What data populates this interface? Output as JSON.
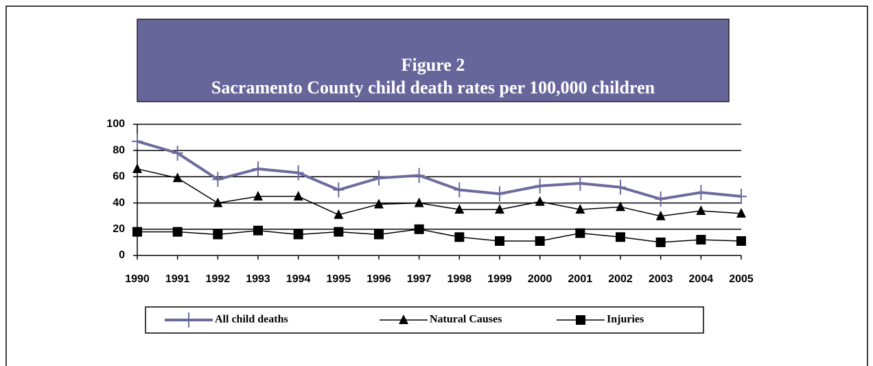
{
  "chart_data": {
    "type": "line",
    "title": "Figure 2",
    "subtitle": "Sacramento County child death rates per 100,000 children",
    "x": [
      1990,
      1991,
      1992,
      1993,
      1994,
      1995,
      1996,
      1997,
      1998,
      1999,
      2000,
      2001,
      2002,
      2003,
      2004,
      2005
    ],
    "xlim": [
      1990,
      2005
    ],
    "xticks": [
      1990,
      1991,
      1992,
      1993,
      1994,
      1995,
      1996,
      1997,
      1998,
      1999,
      2000,
      2001,
      2002,
      2003,
      2004,
      2005
    ],
    "ylim": [
      0,
      100
    ],
    "yticks": [
      0,
      20,
      40,
      60,
      80,
      100
    ],
    "grid": true,
    "legend": "bottom",
    "series": [
      {
        "name": "All child deaths",
        "color": "#6b6b9e",
        "marker": "plus",
        "values": [
          87,
          78,
          58,
          66,
          63,
          50,
          59,
          61,
          50,
          47,
          53,
          55,
          52,
          43,
          48,
          45
        ]
      },
      {
        "name": "Natural Causes",
        "color": "#000000",
        "marker": "triangle",
        "values": [
          66,
          59,
          40,
          45,
          45,
          31,
          39,
          40,
          35,
          35,
          41,
          35,
          37,
          30,
          34,
          32
        ]
      },
      {
        "name": "Injuries",
        "color": "#000000",
        "marker": "square",
        "values": [
          18,
          18,
          16,
          19,
          16,
          18,
          16,
          20,
          14,
          11,
          11,
          17,
          14,
          10,
          12,
          11
        ]
      }
    ]
  }
}
